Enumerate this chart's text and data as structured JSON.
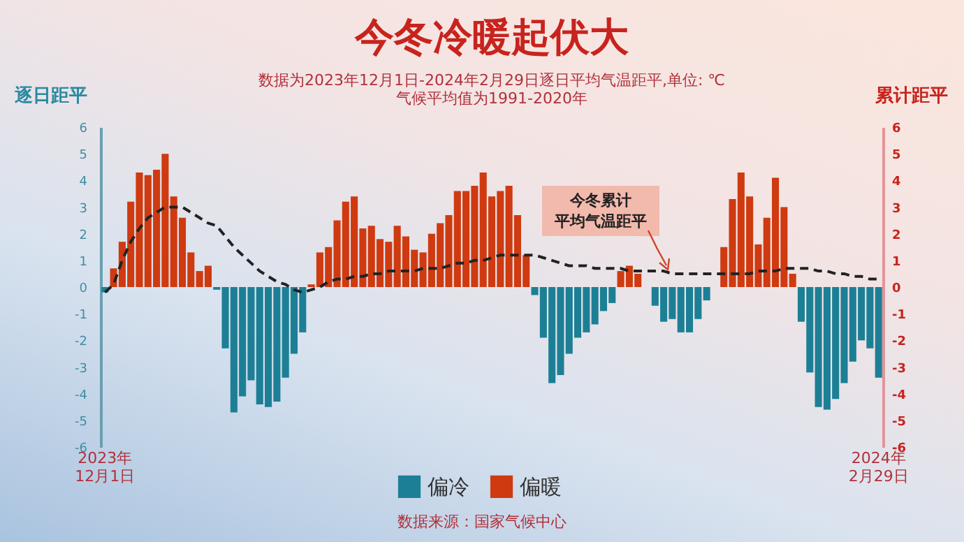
{
  "chart_data": {
    "type": "bar",
    "title": "今冬冷暖起伏大",
    "subtitle": "数据为2023年12月1日-2024年2月29日逐日平均气温距平,单位: ℃\n气候平均值为1991-2020年",
    "ylabel": "逐日距平",
    "y2label": "累计距平",
    "annotations": [
      "今冬累计",
      "平均气温距平",
      "数据来源：国家气候中心"
    ],
    "categories": [
      "2023年\n12月1日",
      null,
      null,
      null,
      null,
      null,
      null,
      null,
      null,
      null,
      null,
      null,
      null,
      null,
      null,
      null,
      null,
      null,
      null,
      null,
      null,
      null,
      null,
      null,
      null,
      null,
      null,
      null,
      null,
      null,
      null,
      null,
      null,
      null,
      null,
      null,
      null,
      null,
      null,
      null,
      null,
      null,
      null,
      null,
      null,
      null,
      null,
      null,
      null,
      null,
      null,
      null,
      null,
      null,
      null,
      null,
      null,
      null,
      null,
      null,
      null,
      null,
      null,
      null,
      null,
      null,
      null,
      null,
      null,
      null,
      null,
      null,
      null,
      null,
      null,
      null,
      null,
      null,
      null,
      null,
      null,
      null,
      null,
      null,
      null,
      null,
      null,
      null,
      null,
      null,
      "2024年\n2月29日"
    ],
    "series": [
      {
        "name": "偏冷",
        "color": "#1d7f95",
        "values": [
          -0.2,
          null,
          null,
          null,
          null,
          null,
          null,
          null,
          null,
          null,
          null,
          null,
          null,
          -0.1,
          -2.3,
          -4.7,
          -4.1,
          -3.5,
          -4.4,
          -4.5,
          -4.3,
          -3.4,
          -2.5,
          -1.7,
          null,
          null,
          null,
          null,
          null,
          null,
          null,
          null,
          null,
          null,
          null,
          null,
          null,
          null,
          null,
          null,
          null,
          null,
          null,
          null,
          null,
          null,
          null,
          null,
          null,
          null,
          -0.3,
          -1.9,
          -3.6,
          -3.3,
          -2.5,
          -1.9,
          -1.7,
          -1.4,
          -0.9,
          -0.6,
          null,
          null,
          null,
          null,
          -0.7,
          -1.3,
          -1.2,
          -1.7,
          -1.7,
          -1.2,
          -0.5,
          null,
          null,
          null,
          null,
          null,
          null,
          null,
          null,
          null,
          null,
          -1.3,
          -3.2,
          -4.5,
          -4.6,
          -4.2,
          -3.6,
          -2.8,
          -2.0,
          -2.3,
          -3.4
        ]
      },
      {
        "name": "偏暖",
        "color": "#cf3a10",
        "values": [
          null,
          0.7,
          1.7,
          3.2,
          4.3,
          4.2,
          4.4,
          5.0,
          3.4,
          2.6,
          1.3,
          0.6,
          0.8,
          null,
          null,
          null,
          null,
          null,
          null,
          null,
          null,
          null,
          null,
          null,
          0.1,
          1.3,
          1.5,
          2.5,
          3.2,
          3.4,
          2.2,
          2.3,
          1.8,
          1.7,
          2.3,
          1.9,
          1.4,
          1.3,
          2.0,
          2.4,
          2.7,
          3.6,
          3.6,
          3.8,
          4.3,
          3.4,
          3.6,
          3.8,
          2.7,
          1.2,
          null,
          null,
          null,
          null,
          null,
          null,
          null,
          null,
          null,
          null,
          0.6,
          0.8,
          0.5,
          null,
          null,
          null,
          null,
          null,
          null,
          null,
          null,
          null,
          1.5,
          3.3,
          4.3,
          3.4,
          1.6,
          2.6,
          4.1,
          3.0,
          0.5,
          null,
          null,
          null,
          null,
          null,
          null,
          null,
          null,
          null,
          null
        ]
      },
      {
        "type": "line",
        "axis": "y2",
        "color": "#222222",
        "line_style": "dashed",
        "marker": "none",
        "values": [
          -0.2,
          0.1,
          1.0,
          1.7,
          2.2,
          2.6,
          2.8,
          3.0,
          3.0,
          3.0,
          2.8,
          2.6,
          2.4,
          2.3,
          1.9,
          1.5,
          1.2,
          0.9,
          0.6,
          0.4,
          0.2,
          0.1,
          -0.1,
          -0.2,
          -0.1,
          0,
          0.2,
          0.3,
          0.3,
          0.4,
          0.4,
          0.5,
          0.5,
          0.6,
          0.6,
          0.6,
          0.6,
          0.7,
          0.7,
          0.7,
          0.8,
          0.9,
          0.9,
          1.0,
          1.0,
          1.1,
          1.2,
          1.2,
          1.2,
          1.2,
          1.2,
          1.1,
          1.0,
          0.9,
          0.8,
          0.8,
          0.8,
          0.7,
          0.7,
          0.7,
          0.7,
          0.6,
          0.6,
          0.6,
          0.6,
          0.6,
          0.5,
          0.5,
          0.5,
          0.5,
          0.5,
          0.5,
          0.5,
          0.5,
          0.5,
          0.5,
          0.6,
          0.6,
          0.6,
          0.7,
          0.7,
          0.7,
          0.7,
          0.6,
          0.6,
          0.5,
          0.5,
          0.4,
          0.4,
          0.3,
          0.3
        ]
      }
    ],
    "ylim": [
      -6,
      6
    ],
    "yticks": [
      -6,
      -5,
      -4,
      -3,
      -2,
      -1,
      0,
      1,
      2,
      3,
      4,
      5,
      6
    ],
    "y2lim": [
      -6,
      6
    ],
    "y2ticks": [
      -6,
      -5,
      -4,
      -3,
      -2,
      -1,
      0,
      1,
      2,
      3,
      4,
      5,
      6
    ],
    "grid": false,
    "legend": "bottom"
  }
}
